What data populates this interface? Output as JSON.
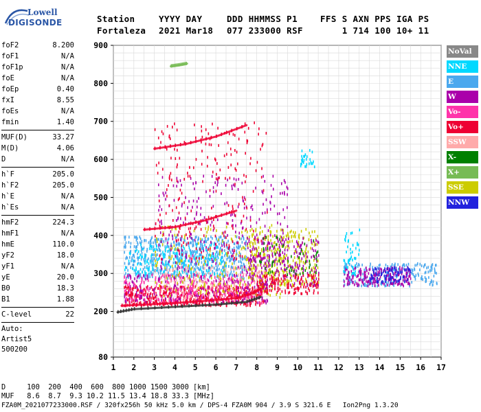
{
  "logo": {
    "line1": "Lowell",
    "line2": "DIGISONDE"
  },
  "header": {
    "row1": [
      "Station",
      "YYYY DAY",
      "DDD HHMMSS P1",
      "FFS S AXN PPS IGA PS"
    ],
    "row2": [
      "Fortaleza",
      "2021 Mar18",
      "077 233000 RSF",
      "    1 714 100 10+ 11"
    ]
  },
  "params": [
    {
      "k": "foF2",
      "v": "8.200"
    },
    {
      "k": "foF1",
      "v": "N/A"
    },
    {
      "k": "foF1p",
      "v": "N/A"
    },
    {
      "k": "foE",
      "v": "N/A"
    },
    {
      "k": "foEp",
      "v": "0.40"
    },
    {
      "k": "fxI",
      "v": "8.55"
    },
    {
      "k": "foEs",
      "v": "N/A"
    },
    {
      "k": "fmin",
      "v": "1.40"
    },
    {
      "sep": true
    },
    {
      "k": "MUF(D)",
      "v": "33.27"
    },
    {
      "k": "M(D)",
      "v": "4.06"
    },
    {
      "k": "D",
      "v": "N/A"
    },
    {
      "sep": true
    },
    {
      "k": "h`F",
      "v": "205.0"
    },
    {
      "k": "h`F2",
      "v": "205.0"
    },
    {
      "k": "h`E",
      "v": "N/A"
    },
    {
      "k": "h`Es",
      "v": "N/A"
    },
    {
      "sep": true
    },
    {
      "k": "hmF2",
      "v": "224.3"
    },
    {
      "k": "hmF1",
      "v": "N/A"
    },
    {
      "k": "hmE",
      "v": "110.0"
    },
    {
      "k": "yF2",
      "v": "18.0"
    },
    {
      "k": "yF1",
      "v": "N/A"
    },
    {
      "k": "yE",
      "v": "20.0"
    },
    {
      "k": "B0",
      "v": "18.3"
    },
    {
      "k": "B1",
      "v": "1.88"
    },
    {
      "sep": true
    },
    {
      "k": "C-level",
      "v": "22"
    },
    {
      "sep": true
    },
    {
      "t": "Auto:"
    },
    {
      "t": "Artist5"
    },
    {
      "t": "500200"
    }
  ],
  "legend": [
    {
      "label": "NoVal",
      "color": "#888888"
    },
    {
      "label": "NNE",
      "color": "#00d8ff"
    },
    {
      "label": "E",
      "color": "#4aa8ee"
    },
    {
      "label": "W",
      "color": "#aa00aa"
    },
    {
      "label": "Vo-",
      "color": "#ff33aa"
    },
    {
      "label": "Vo+",
      "color": "#ee0033"
    },
    {
      "label": "SSW",
      "color": "#ffaaaa"
    },
    {
      "label": "X-",
      "color": "#008000"
    },
    {
      "label": "X+",
      "color": "#77bb55"
    },
    {
      "label": "SSE",
      "color": "#cccc00"
    },
    {
      "label": "NNW",
      "color": "#2222dd"
    }
  ],
  "footer": {
    "line1": "D     100  200  400  600  800 1000 1500 3000 [km]",
    "line2": "MUF   8.6  8.7  9.3 10.2 11.5 13.4 18.8 33.3 [MHz]",
    "line3": "FZA0M_2021077233000.RSF / 320fx256h 50 kHz 5.0 km / DPS-4 FZA0M 904 / 3.9 S 321.6 E   Ion2Png 1.3.20"
  },
  "chart_data": {
    "type": "scatter",
    "xlim": [
      1,
      17
    ],
    "ylim": [
      80,
      900
    ],
    "x_ticks": [
      1,
      2,
      3,
      4,
      5,
      6,
      7,
      8,
      9,
      10,
      11,
      12,
      13,
      14,
      15,
      16,
      17
    ],
    "y_ticks": [
      80,
      200,
      300,
      400,
      500,
      600,
      700,
      800,
      900
    ],
    "grid": true,
    "legend_position": "right",
    "traces": [
      {
        "name": "F2 O-trace",
        "color": "#ee0033",
        "x": [
          1.4,
          2.5,
          4,
          5.5,
          7,
          7.8,
          8.2
        ],
        "y": [
          215,
          218,
          222,
          228,
          235,
          248,
          260
        ]
      },
      {
        "name": "F2 X-trace",
        "color": "#333333",
        "x": [
          1.2,
          2,
          4,
          6,
          7.5,
          8.2
        ],
        "y": [
          198,
          206,
          212,
          218,
          225,
          238
        ]
      },
      {
        "name": "2F echo",
        "color": "#ee0033",
        "x": [
          2.5,
          4,
          5.5,
          7
        ],
        "y": [
          415,
          422,
          440,
          465
        ]
      },
      {
        "name": "3F echo",
        "color": "#ee0033",
        "x": [
          3,
          4.5,
          6,
          7.5
        ],
        "y": [
          628,
          640,
          660,
          690
        ]
      },
      {
        "name": "4F echo",
        "color": "#77bb55",
        "x": [
          3.8,
          4.2,
          4.6
        ],
        "y": [
          845,
          848,
          852
        ]
      }
    ],
    "clusters": [
      {
        "color": "#4aa8ee",
        "xr": [
          1.5,
          7.5
        ],
        "yr": [
          290,
          400
        ],
        "n": 650
      },
      {
        "color": "#00d8ff",
        "xr": [
          1.5,
          6.5
        ],
        "yr": [
          300,
          380
        ],
        "n": 200
      },
      {
        "color": "#ee0033",
        "xr": [
          1.5,
          8.5
        ],
        "yr": [
          218,
          270
        ],
        "n": 500
      },
      {
        "color": "#ff33aa",
        "xr": [
          1.5,
          8.5
        ],
        "yr": [
          225,
          300
        ],
        "n": 320
      },
      {
        "color": "#aa00aa",
        "xr": [
          1.5,
          8.5
        ],
        "yr": [
          225,
          300
        ],
        "n": 200
      },
      {
        "color": "#ffaaaa",
        "xr": [
          3,
          8.5
        ],
        "yr": [
          230,
          320
        ],
        "n": 170
      },
      {
        "color": "#cccc00",
        "xr": [
          3,
          9.5
        ],
        "yr": [
          240,
          430
        ],
        "n": 230
      },
      {
        "color": "#aa00aa",
        "xr": [
          3,
          9.5
        ],
        "yr": [
          300,
          560
        ],
        "n": 280
      },
      {
        "color": "#ee0033",
        "xr": [
          3,
          8.5
        ],
        "yr": [
          340,
          700
        ],
        "n": 230
      },
      {
        "color": "#cccc00",
        "xr": [
          7.5,
          11
        ],
        "yr": [
          270,
          420
        ],
        "n": 280
      },
      {
        "color": "#aa00aa",
        "xr": [
          7.5,
          11
        ],
        "yr": [
          270,
          400
        ],
        "n": 220
      },
      {
        "color": "#ee0033",
        "xr": [
          8,
          11
        ],
        "yr": [
          250,
          300
        ],
        "n": 140
      },
      {
        "color": "#008000",
        "xr": [
          8,
          11
        ],
        "yr": [
          300,
          400
        ],
        "n": 60
      },
      {
        "color": "#4aa8ee",
        "xr": [
          12.2,
          16.8
        ],
        "yr": [
          270,
          330
        ],
        "n": 220
      },
      {
        "color": "#aa00aa",
        "xr": [
          12.2,
          15.5
        ],
        "yr": [
          270,
          320
        ],
        "n": 200
      },
      {
        "color": "#00d8ff",
        "xr": [
          12.2,
          13
        ],
        "yr": [
          300,
          420
        ],
        "n": 50
      },
      {
        "color": "#00d8ff",
        "xr": [
          10.1,
          10.8
        ],
        "yr": [
          580,
          630
        ],
        "n": 30
      },
      {
        "color": "#2222dd",
        "xr": [
          13.5,
          15.5
        ],
        "yr": [
          280,
          320
        ],
        "n": 80
      }
    ]
  }
}
